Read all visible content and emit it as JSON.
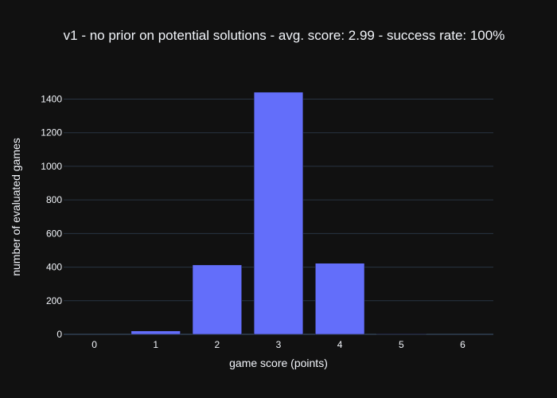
{
  "chart_data": {
    "type": "bar",
    "title": "v1 - no prior on potential solutions - avg. score: 2.99 - success rate: 100%",
    "xlabel": "game score (points)",
    "ylabel": "number of evaluated games",
    "categories": [
      "0",
      "1",
      "2",
      "3",
      "4",
      "5",
      "6"
    ],
    "values": [
      0,
      20,
      413,
      1441,
      423,
      3,
      0
    ],
    "ylim": [
      0,
      1516
    ],
    "yticks": [
      0,
      200,
      400,
      600,
      800,
      1000,
      1200,
      1400
    ],
    "grid": true,
    "legend": "none",
    "colors": {
      "background": "#111111",
      "bar": "#636efa",
      "grid": "#283442",
      "text": "#f2f5fa"
    }
  }
}
